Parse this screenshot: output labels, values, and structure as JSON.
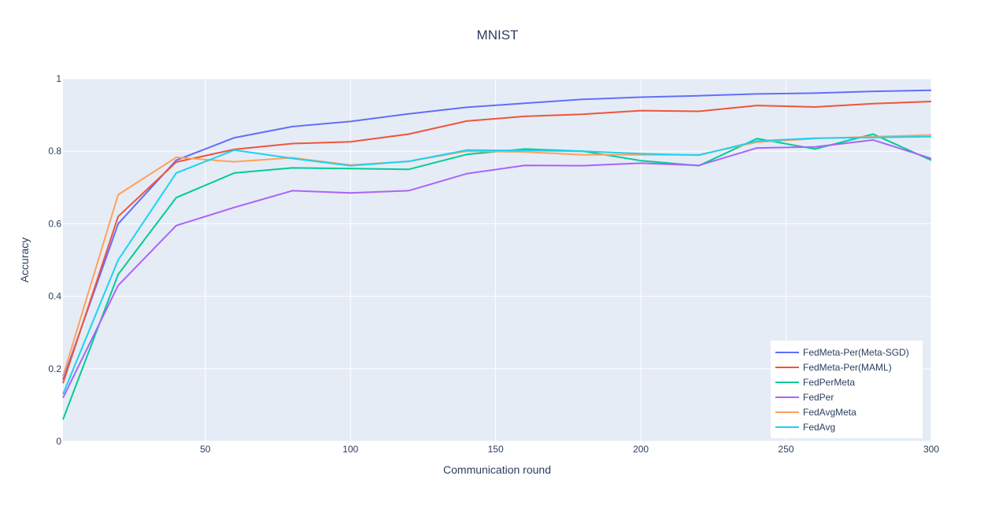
{
  "chart_data": {
    "type": "line",
    "title": "MNIST",
    "xlabel": "Communication round",
    "ylabel": "Accuracy",
    "xlim": [
      1,
      300
    ],
    "ylim": [
      0,
      1
    ],
    "xticks": [
      50,
      100,
      150,
      200,
      250,
      300
    ],
    "yticks": [
      0,
      0.2,
      0.4,
      0.6,
      0.8,
      1
    ],
    "ytick_labels": [
      "0",
      "0.2",
      "0.4",
      "0.6",
      "0.8",
      "1"
    ],
    "grid": true,
    "legend_position": "bottom-right",
    "x": [
      1,
      20,
      40,
      60,
      80,
      100,
      120,
      140,
      160,
      180,
      200,
      220,
      240,
      260,
      280,
      300
    ],
    "series": [
      {
        "name": "FedMeta-Per(Meta-SGD)",
        "color": "#636efa",
        "values": [
          0.17,
          0.6,
          0.775,
          0.837,
          0.868,
          0.882,
          0.903,
          0.921,
          0.932,
          0.943,
          0.949,
          0.953,
          0.958,
          0.96,
          0.965,
          0.968
        ]
      },
      {
        "name": "FedMeta-Per(MAML)",
        "color": "#EF553B",
        "values": [
          0.16,
          0.62,
          0.77,
          0.805,
          0.821,
          0.826,
          0.847,
          0.883,
          0.896,
          0.902,
          0.912,
          0.91,
          0.926,
          0.922,
          0.931,
          0.937
        ]
      },
      {
        "name": "FedPerMeta",
        "color": "#00cc96",
        "values": [
          0.06,
          0.46,
          0.672,
          0.74,
          0.754,
          0.752,
          0.75,
          0.791,
          0.806,
          0.8,
          0.774,
          0.76,
          0.835,
          0.806,
          0.847,
          0.775
        ]
      },
      {
        "name": "FedPer",
        "color": "#ab63fa",
        "values": [
          0.12,
          0.43,
          0.595,
          0.645,
          0.691,
          0.685,
          0.691,
          0.738,
          0.761,
          0.76,
          0.767,
          0.761,
          0.809,
          0.812,
          0.831,
          0.78
        ]
      },
      {
        "name": "FedAvgMeta",
        "color": "#FFA15A",
        "values": [
          0.18,
          0.68,
          0.783,
          0.771,
          0.782,
          0.762,
          0.772,
          0.8,
          0.798,
          0.79,
          0.79,
          0.79,
          0.825,
          0.835,
          0.84,
          0.845
        ]
      },
      {
        "name": "FedAvg",
        "color": "#19d3f3",
        "values": [
          0.13,
          0.5,
          0.74,
          0.803,
          0.78,
          0.76,
          0.772,
          0.803,
          0.802,
          0.8,
          0.793,
          0.789,
          0.828,
          0.836,
          0.838,
          0.84
        ]
      }
    ]
  }
}
